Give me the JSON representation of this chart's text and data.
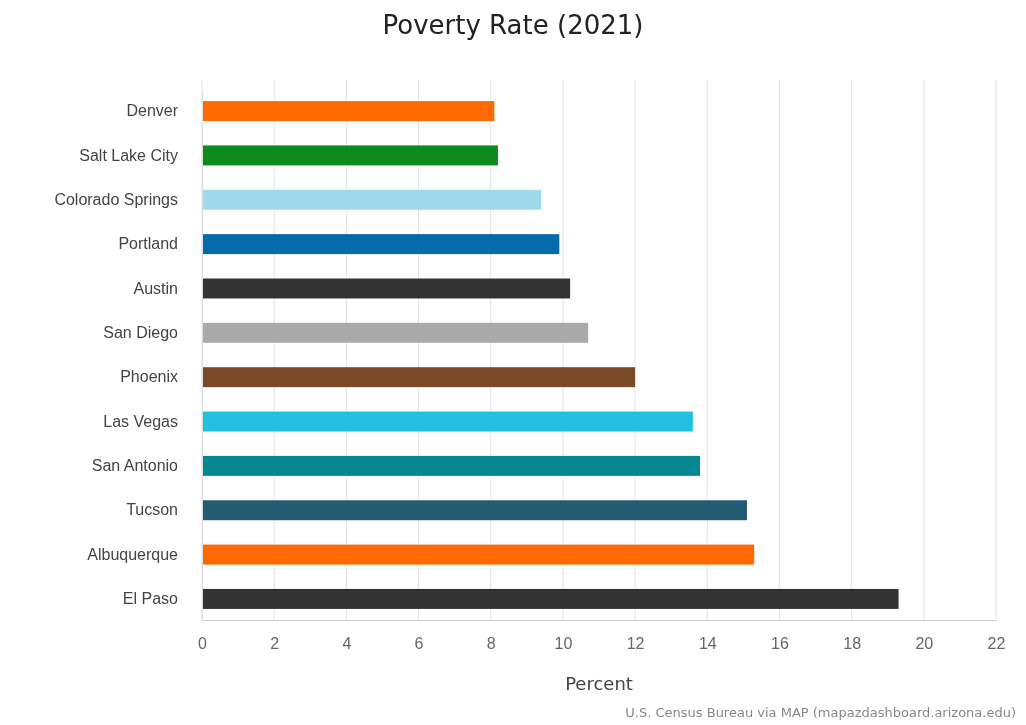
{
  "chart_data": {
    "type": "bar",
    "orientation": "horizontal",
    "title": "Poverty Rate (2021)",
    "xlabel": "Percent",
    "categories": [
      "Denver",
      "Salt Lake City",
      "Colorado Springs",
      "Portland",
      "Austin",
      "San Diego",
      "Phoenix",
      "Las Vegas",
      "San Antonio",
      "Tucson",
      "Albuquerque",
      "El Paso"
    ],
    "values": [
      8.1,
      8.2,
      9.4,
      9.9,
      10.2,
      10.7,
      12.0,
      13.6,
      13.8,
      15.1,
      15.3,
      19.3
    ],
    "colors": [
      "#ff6a00",
      "#0c8a1c",
      "#9fd9ec",
      "#056bab",
      "#333333",
      "#aaaaaa",
      "#7a4a26",
      "#22c0e0",
      "#078891",
      "#245b72",
      "#ff6a00",
      "#333333"
    ],
    "xlim": [
      0,
      22
    ],
    "xticks": [
      0,
      2,
      4,
      6,
      8,
      10,
      12,
      14,
      16,
      18,
      20,
      22
    ],
    "grid": "x",
    "annotations": [
      "U.S. Census Bureau via MAP (mapazdashboard.arizona.edu)"
    ]
  }
}
